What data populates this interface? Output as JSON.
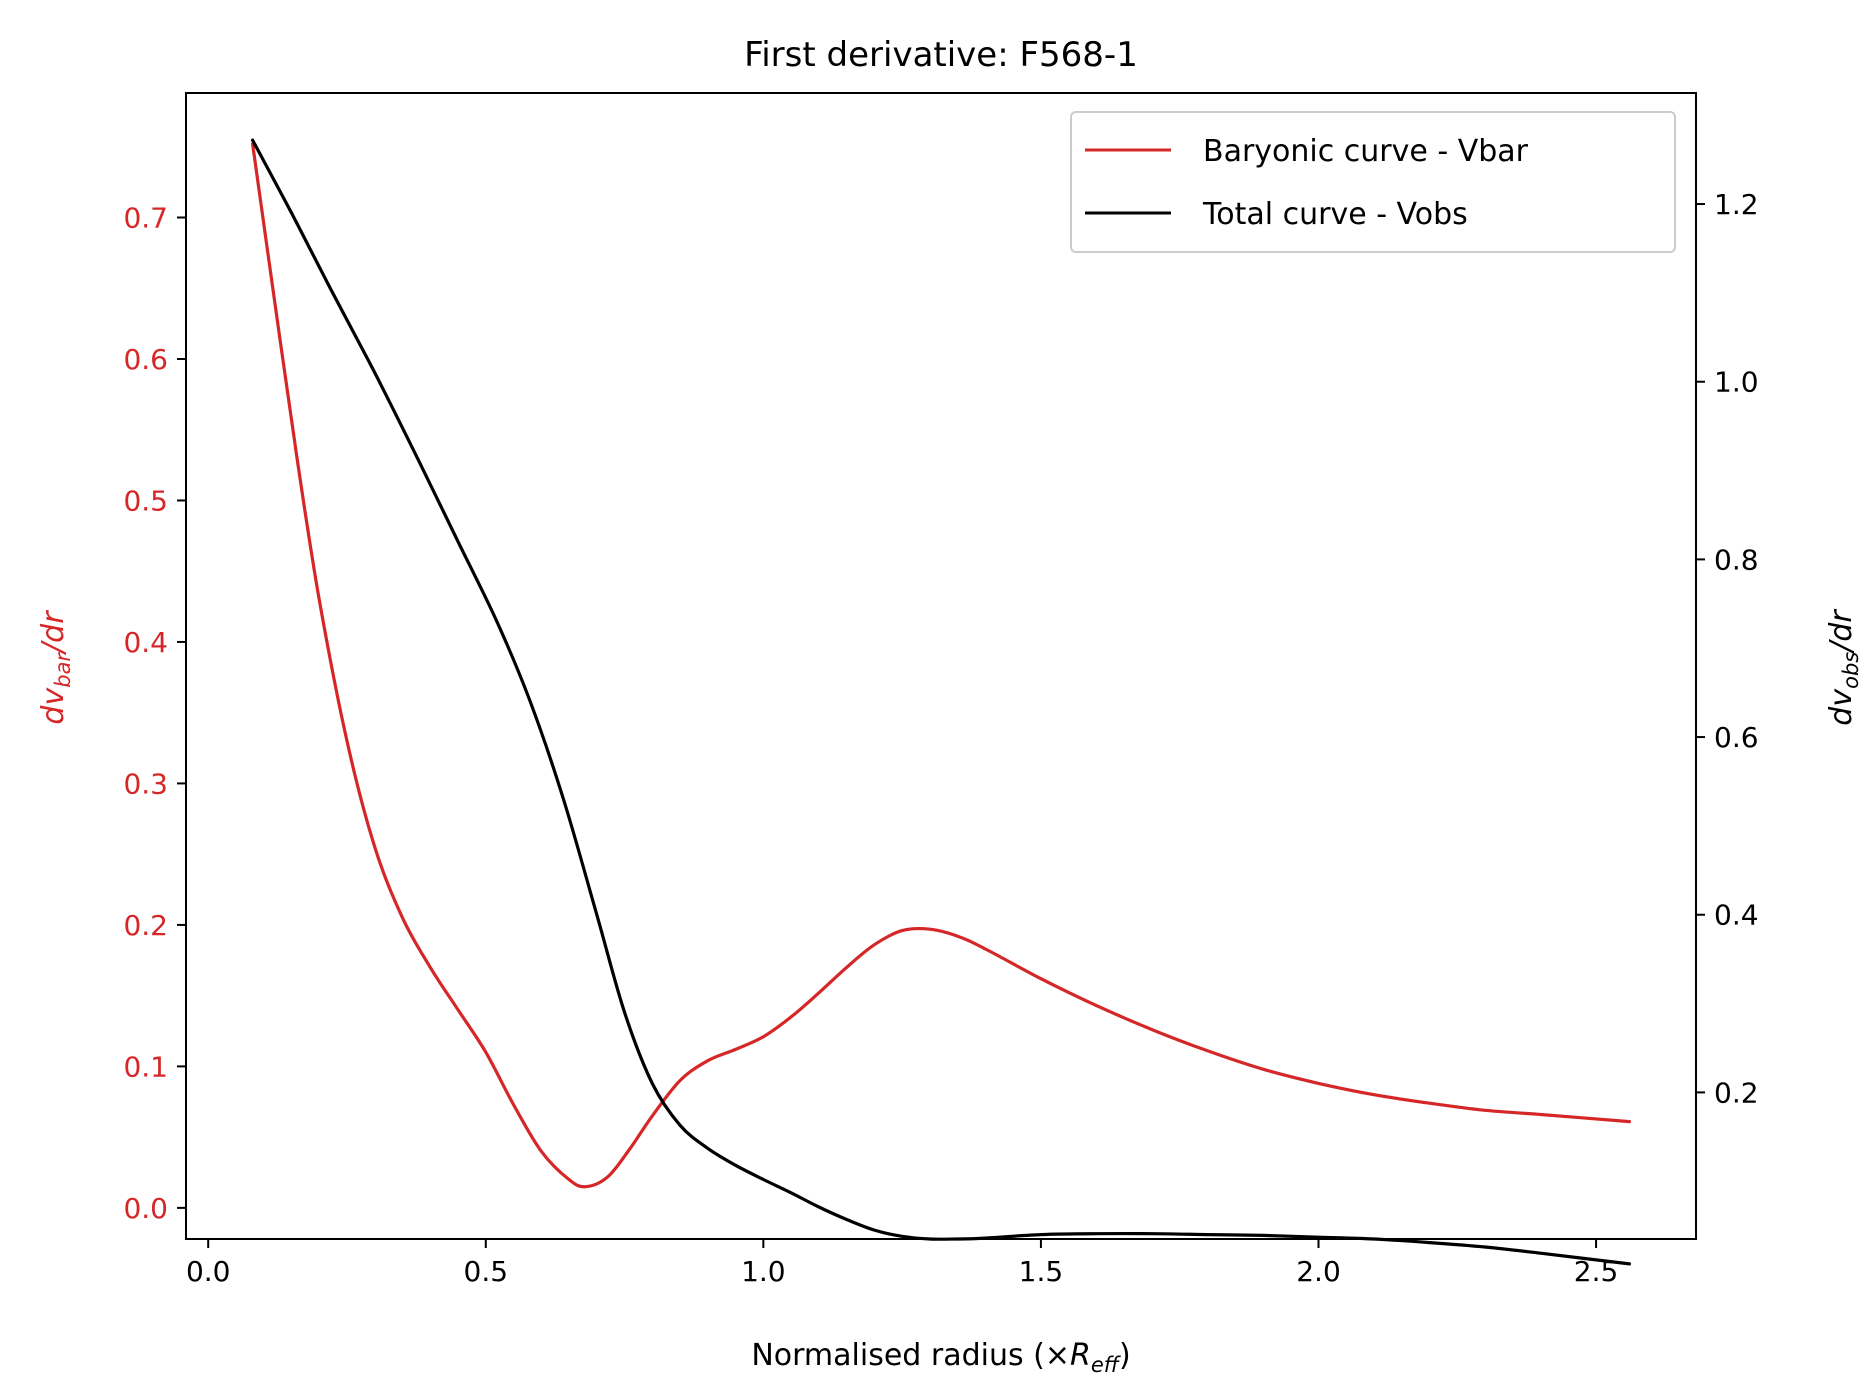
{
  "colors": {
    "bar": "#d62728",
    "obs": "#000000",
    "axes": "#000000",
    "legend_border": "#cccccc"
  },
  "chart_data": {
    "type": "line",
    "title": "First derivative: F568-1",
    "xlabel": {
      "prefix": "Normalised radius (×",
      "symbol": "R",
      "subscript": "eff",
      "suffix": ")"
    },
    "ylabel_left": {
      "prefix": "dv",
      "subscript": "bar",
      "suffix": "/dr"
    },
    "ylabel_right": {
      "prefix": "dv",
      "subscript": "obs",
      "suffix": "/dr"
    },
    "xlim": [
      -0.04,
      2.68
    ],
    "ylim_left": [
      -0.022,
      0.788
    ],
    "ylim_right": [
      0.035,
      1.325
    ],
    "xticks": [
      0.0,
      0.5,
      1.0,
      1.5,
      2.0,
      2.5
    ],
    "xtick_labels": [
      "0.0",
      "0.5",
      "1.0",
      "1.5",
      "2.0",
      "2.5"
    ],
    "yticks_left": [
      0.0,
      0.1,
      0.2,
      0.3,
      0.4,
      0.5,
      0.6,
      0.7
    ],
    "ytick_labels_left": [
      "0.0",
      "0.1",
      "0.2",
      "0.3",
      "0.4",
      "0.5",
      "0.6",
      "0.7"
    ],
    "yticks_right": [
      0.2,
      0.4,
      0.6,
      0.8,
      1.0,
      1.2
    ],
    "ytick_labels_right": [
      "0.2",
      "0.4",
      "0.6",
      "0.8",
      "1.0",
      "1.2"
    ],
    "legend_position": "upper-right",
    "grid": false,
    "series": [
      {
        "name": "Baryonic curve - Vbar",
        "axis": "left",
        "color": "#d62728",
        "x": [
          0.08,
          0.12,
          0.16,
          0.2,
          0.25,
          0.3,
          0.35,
          0.4,
          0.45,
          0.5,
          0.55,
          0.6,
          0.65,
          0.68,
          0.72,
          0.76,
          0.8,
          0.85,
          0.9,
          0.95,
          1.0,
          1.05,
          1.1,
          1.15,
          1.2,
          1.25,
          1.3,
          1.35,
          1.4,
          1.5,
          1.6,
          1.7,
          1.8,
          1.9,
          2.0,
          2.1,
          2.2,
          2.3,
          2.4,
          2.56
        ],
        "y": [
          0.752,
          0.64,
          0.53,
          0.43,
          0.33,
          0.255,
          0.205,
          0.17,
          0.14,
          0.11,
          0.073,
          0.04,
          0.02,
          0.015,
          0.022,
          0.042,
          0.065,
          0.09,
          0.104,
          0.112,
          0.121,
          0.135,
          0.152,
          0.17,
          0.186,
          0.196,
          0.197,
          0.192,
          0.183,
          0.162,
          0.143,
          0.126,
          0.111,
          0.098,
          0.088,
          0.08,
          0.074,
          0.069,
          0.066,
          0.061
        ]
      },
      {
        "name": "Total curve - Vobs",
        "axis": "right",
        "color": "#000000",
        "x": [
          0.08,
          0.15,
          0.22,
          0.3,
          0.38,
          0.45,
          0.52,
          0.58,
          0.64,
          0.7,
          0.75,
          0.8,
          0.85,
          0.9,
          0.95,
          1.0,
          1.05,
          1.1,
          1.15,
          1.2,
          1.25,
          1.3,
          1.35,
          1.4,
          1.5,
          1.6,
          1.7,
          1.8,
          1.9,
          2.0,
          2.1,
          2.2,
          2.3,
          2.4,
          2.56
        ],
        "y": [
          1.272,
          1.19,
          1.105,
          1.01,
          0.91,
          0.82,
          0.73,
          0.64,
          0.53,
          0.4,
          0.29,
          0.21,
          0.163,
          0.137,
          0.118,
          0.102,
          0.087,
          0.071,
          0.057,
          0.045,
          0.038,
          0.035,
          0.035,
          0.036,
          0.04,
          0.041,
          0.041,
          0.04,
          0.039,
          0.037,
          0.035,
          0.031,
          0.026,
          0.019,
          0.007
        ]
      }
    ]
  }
}
